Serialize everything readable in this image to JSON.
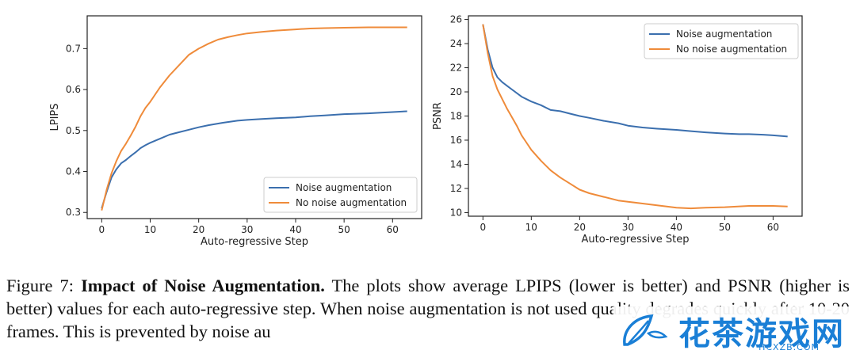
{
  "caption": {
    "figure_label": "Figure 7:",
    "title": "Impact of Noise Augmentation.",
    "text": "The plots show average LPIPS (lower is better) and PSNR (higher is better) values for each auto-regressive step. When noise augmentation is not used quality degrades quickly after 10-20 frames. This is prevented by noise au"
  },
  "watermark": {
    "text": "花茶游戏网",
    "sub": "HCXZB.COM"
  },
  "colors": {
    "blue": "#3b6fae",
    "orange": "#ef8b3a",
    "frame": "#222222"
  },
  "chart_data": [
    {
      "type": "line",
      "title": "",
      "xlabel": "Auto-regressive Step",
      "ylabel": "LPIPS",
      "xlim": [
        -3,
        66
      ],
      "ylim": [
        0.285,
        0.78
      ],
      "xticks": [
        0,
        10,
        20,
        30,
        40,
        50,
        60
      ],
      "yticks": [
        0.3,
        0.4,
        0.5,
        0.6,
        0.7
      ],
      "ytick_labels": [
        "0.3",
        "0.4",
        "0.5",
        "0.6",
        "0.7"
      ],
      "legend_position": "lower-right",
      "series": [
        {
          "name": "Noise augmentation",
          "color": "#3b6fae",
          "x": [
            0,
            1,
            2,
            3,
            4,
            5,
            6,
            7,
            8,
            9,
            10,
            12,
            14,
            16,
            18,
            20,
            22,
            25,
            28,
            30,
            33,
            36,
            40,
            43,
            46,
            50,
            55,
            58,
            60,
            63
          ],
          "y": [
            0.31,
            0.35,
            0.385,
            0.405,
            0.42,
            0.428,
            0.438,
            0.447,
            0.457,
            0.464,
            0.47,
            0.48,
            0.49,
            0.496,
            0.502,
            0.508,
            0.513,
            0.519,
            0.524,
            0.526,
            0.528,
            0.53,
            0.532,
            0.535,
            0.537,
            0.54,
            0.542,
            0.544,
            0.545,
            0.547
          ]
        },
        {
          "name": "No noise augmentation",
          "color": "#ef8b3a",
          "x": [
            0,
            1,
            2,
            3,
            4,
            5,
            6,
            7,
            8,
            9,
            10,
            12,
            14,
            16,
            18,
            20,
            22,
            24,
            26,
            28,
            30,
            33,
            36,
            40,
            43,
            46,
            50,
            55,
            58,
            60,
            63
          ],
          "y": [
            0.305,
            0.355,
            0.395,
            0.425,
            0.45,
            0.468,
            0.488,
            0.51,
            0.535,
            0.555,
            0.57,
            0.605,
            0.635,
            0.66,
            0.685,
            0.7,
            0.712,
            0.722,
            0.728,
            0.733,
            0.737,
            0.741,
            0.744,
            0.747,
            0.749,
            0.75,
            0.751,
            0.752,
            0.752,
            0.752,
            0.752
          ]
        }
      ]
    },
    {
      "type": "line",
      "title": "",
      "xlabel": "Auto-regressive Step",
      "ylabel": "PSNR",
      "xlim": [
        -3,
        66
      ],
      "ylim": [
        9.7,
        26.3
      ],
      "xticks": [
        0,
        10,
        20,
        30,
        40,
        50,
        60
      ],
      "yticks": [
        10,
        12,
        14,
        16,
        18,
        20,
        22,
        24,
        26
      ],
      "ytick_labels": [
        "10",
        "12",
        "14",
        "16",
        "18",
        "20",
        "22",
        "24",
        "26"
      ],
      "legend_position": "upper-right",
      "series": [
        {
          "name": "Noise augmentation",
          "color": "#3b6fae",
          "x": [
            0,
            1,
            2,
            3,
            4,
            5,
            6,
            8,
            10,
            12,
            14,
            16,
            18,
            20,
            22,
            25,
            28,
            30,
            33,
            36,
            40,
            43,
            46,
            50,
            53,
            55,
            58,
            60,
            63
          ],
          "y": [
            25.6,
            23.5,
            22.0,
            21.2,
            20.8,
            20.5,
            20.2,
            19.6,
            19.2,
            18.9,
            18.5,
            18.4,
            18.2,
            18.0,
            17.85,
            17.6,
            17.4,
            17.2,
            17.05,
            16.95,
            16.85,
            16.75,
            16.65,
            16.55,
            16.5,
            16.5,
            16.45,
            16.4,
            16.3
          ]
        },
        {
          "name": "No noise augmentation",
          "color": "#ef8b3a",
          "x": [
            0,
            1,
            2,
            3,
            4,
            5,
            6,
            7,
            8,
            9,
            10,
            12,
            14,
            16,
            18,
            20,
            22,
            25,
            28,
            30,
            33,
            36,
            40,
            43,
            46,
            50,
            55,
            58,
            60,
            63
          ],
          "y": [
            25.6,
            23.2,
            21.3,
            20.2,
            19.4,
            18.6,
            17.9,
            17.2,
            16.4,
            15.8,
            15.2,
            14.3,
            13.5,
            12.9,
            12.4,
            11.9,
            11.6,
            11.3,
            11.0,
            10.9,
            10.75,
            10.6,
            10.4,
            10.35,
            10.4,
            10.45,
            10.55,
            10.55,
            10.55,
            10.5
          ]
        }
      ]
    }
  ]
}
